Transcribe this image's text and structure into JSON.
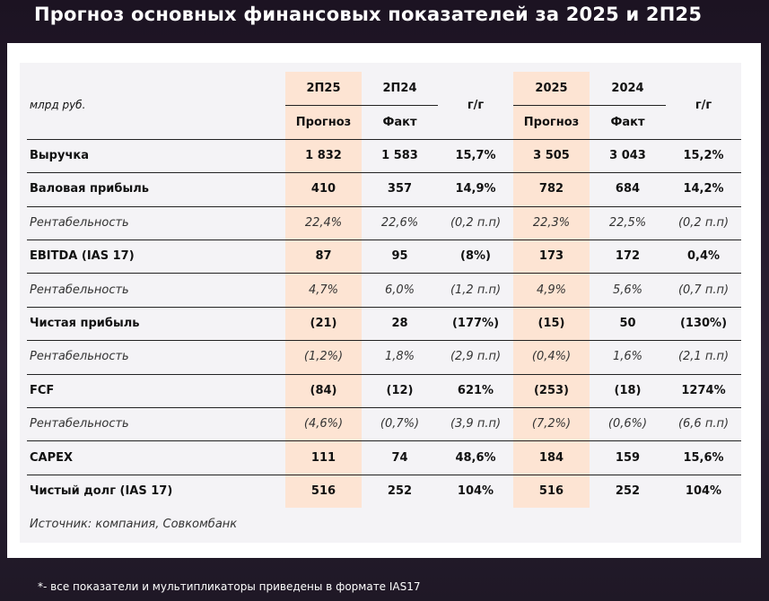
{
  "title": "Прогноз основных финансовых показателей за 2025 и 2П25",
  "table": {
    "unit": "млрд руб.",
    "columns": [
      {
        "period": "2П25",
        "kind": "Прогноз",
        "highlight": true
      },
      {
        "period": "2П24",
        "kind": "Факт"
      },
      {
        "period": "г/г"
      },
      {
        "period": "2025",
        "kind": "Прогноз",
        "highlight": true
      },
      {
        "period": "2024",
        "kind": "Факт"
      },
      {
        "period": "г/г"
      }
    ],
    "rows": [
      {
        "label": "Выручка",
        "style": "bold",
        "values": [
          "1 832",
          "1 583",
          "15,7%",
          "3 505",
          "3 043",
          "15,2%"
        ]
      },
      {
        "label": "Валовая прибыль",
        "style": "bold",
        "values": [
          "410",
          "357",
          "14,9%",
          "782",
          "684",
          "14,2%"
        ]
      },
      {
        "label": "Рентабельность",
        "style": "italic",
        "values": [
          "22,4%",
          "22,6%",
          "(0,2 п.п)",
          "22,3%",
          "22,5%",
          "(0,2 п.п)"
        ]
      },
      {
        "label": "EBITDA (IAS 17)",
        "style": "bold",
        "values": [
          "87",
          "95",
          "(8%)",
          "173",
          "172",
          "0,4%"
        ]
      },
      {
        "label": "Рентабельность",
        "style": "italic",
        "values": [
          "4,7%",
          "6,0%",
          "(1,2 п.п)",
          "4,9%",
          "5,6%",
          "(0,7 п.п)"
        ]
      },
      {
        "label": "Чистая прибыль",
        "style": "bold",
        "values": [
          "(21)",
          "28",
          "(177%)",
          "(15)",
          "50",
          "(130%)"
        ]
      },
      {
        "label": "Рентабельность",
        "style": "italic",
        "values": [
          "(1,2%)",
          "1,8%",
          "(2,9 п.п)",
          "(0,4%)",
          "1,6%",
          "(2,1 п.п)"
        ]
      },
      {
        "label": "FCF",
        "style": "bold",
        "values": [
          "(84)",
          "(12)",
          "621%",
          "(253)",
          "(18)",
          "1274%"
        ]
      },
      {
        "label": "Рентабельность",
        "style": "italic",
        "values": [
          "(4,6%)",
          "(0,7%)",
          "(3,9 п.п)",
          "(7,2%)",
          "(0,6%)",
          "(6,6 п.п)"
        ]
      },
      {
        "label": "CAPEX",
        "style": "bold",
        "values": [
          "111",
          "74",
          "48,6%",
          "184",
          "159",
          "15,6%"
        ]
      },
      {
        "label": "Чистый долг (IAS 17)",
        "style": "bold",
        "values": [
          "516",
          "252",
          "104%",
          "516",
          "252",
          "104%"
        ]
      }
    ],
    "source": "Источник: компания, Совкомбанк"
  },
  "footnote": "*- все показатели и мультипликаторы приведены в формате IAS17"
}
